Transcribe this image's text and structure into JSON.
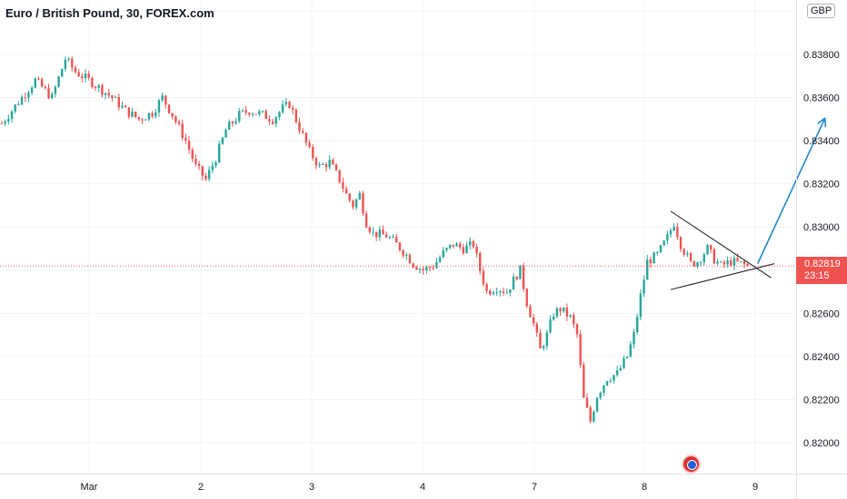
{
  "header": {
    "symbol_title": "Euro / British Pound, 30, FOREX.com",
    "currency": "GBP"
  },
  "price_tag": {
    "price": "0.82819",
    "countdown": "23:15"
  },
  "colors": {
    "up": "#26a69a",
    "down": "#ef5350",
    "grid": "#f0f3fa",
    "axis_text": "#131722",
    "arrow": "#1e88c6",
    "trendline": "#131722",
    "last_price_line": "#ef5350"
  },
  "chart_data": {
    "type": "candlestick",
    "title": "Euro / British Pound, 30, FOREX.com",
    "y_axis": {
      "position": "right",
      "ticks": [
        "0.83800",
        "0.83600",
        "0.83400",
        "0.83200",
        "0.83000",
        "0.82600",
        "0.82400",
        "0.82200",
        "0.82000"
      ],
      "range": [
        0.8192,
        0.84
      ]
    },
    "x_axis": {
      "ticks": [
        "Mar",
        "2",
        "3",
        "4",
        "7",
        "8",
        "9"
      ]
    },
    "grid": true,
    "last_price": 0.82819,
    "price_path": [
      [
        0,
        0.8348
      ],
      [
        6,
        0.836
      ],
      [
        10,
        0.8368
      ],
      [
        15,
        0.836
      ],
      [
        19,
        0.8378
      ],
      [
        22,
        0.8372
      ],
      [
        27,
        0.8367
      ],
      [
        33,
        0.836
      ],
      [
        37,
        0.8354
      ],
      [
        41,
        0.835
      ],
      [
        45,
        0.8353
      ],
      [
        48,
        0.836
      ],
      [
        51,
        0.8352
      ],
      [
        55,
        0.834
      ],
      [
        58,
        0.8328
      ],
      [
        61,
        0.8322
      ],
      [
        64,
        0.8332
      ],
      [
        67,
        0.8345
      ],
      [
        71,
        0.8352
      ],
      [
        74,
        0.8354
      ],
      [
        78,
        0.8352
      ],
      [
        81,
        0.835
      ],
      [
        84,
        0.8355
      ],
      [
        86,
        0.8357
      ],
      [
        89,
        0.8346
      ],
      [
        92,
        0.8335
      ],
      [
        95,
        0.8328
      ],
      [
        98,
        0.833
      ],
      [
        101,
        0.8322
      ],
      [
        103,
        0.8315
      ],
      [
        105,
        0.831
      ],
      [
        107,
        0.8315
      ],
      [
        109,
        0.8302
      ],
      [
        111,
        0.8297
      ],
      [
        115,
        0.8296
      ],
      [
        118,
        0.8292
      ],
      [
        121,
        0.8287
      ],
      [
        123,
        0.8283
      ],
      [
        126,
        0.828
      ],
      [
        129,
        0.8282
      ],
      [
        132,
        0.8288
      ],
      [
        135,
        0.8292
      ],
      [
        138,
        0.829
      ],
      [
        141,
        0.8292
      ],
      [
        143,
        0.828
      ],
      [
        145,
        0.827
      ],
      [
        148,
        0.8272
      ],
      [
        151,
        0.827
      ],
      [
        154,
        0.8278
      ],
      [
        155,
        0.828
      ],
      [
        157,
        0.8265
      ],
      [
        159,
        0.8255
      ],
      [
        161,
        0.8243
      ],
      [
        163,
        0.825
      ],
      [
        165,
        0.826
      ],
      [
        167,
        0.8262
      ],
      [
        170,
        0.8258
      ],
      [
        172,
        0.825
      ],
      [
        173,
        0.8235
      ],
      [
        174,
        0.822
      ],
      [
        176,
        0.821
      ],
      [
        178,
        0.8222
      ],
      [
        181,
        0.823
      ],
      [
        184,
        0.8232
      ],
      [
        187,
        0.824
      ],
      [
        189,
        0.825
      ],
      [
        191,
        0.8268
      ],
      [
        193,
        0.8284
      ],
      [
        196,
        0.8287
      ],
      [
        199,
        0.8295
      ],
      [
        201,
        0.8302
      ],
      [
        203,
        0.8292
      ],
      [
        206,
        0.8283
      ],
      [
        208,
        0.8284
      ],
      [
        211,
        0.829
      ],
      [
        213,
        0.8285
      ],
      [
        215,
        0.8282
      ],
      [
        218,
        0.8284
      ],
      [
        221,
        0.8283
      ],
      [
        223,
        0.82819
      ]
    ],
    "annotations": [
      {
        "type": "line",
        "from": [
          200,
          0.83073
        ],
        "to": [
          230,
          0.82765
        ]
      },
      {
        "type": "line",
        "from": [
          200,
          0.8271
        ],
        "to": [
          231,
          0.8283
        ]
      },
      {
        "type": "arrow",
        "from": [
          226,
          0.8283
        ],
        "to": [
          246,
          0.835
        ]
      }
    ]
  }
}
